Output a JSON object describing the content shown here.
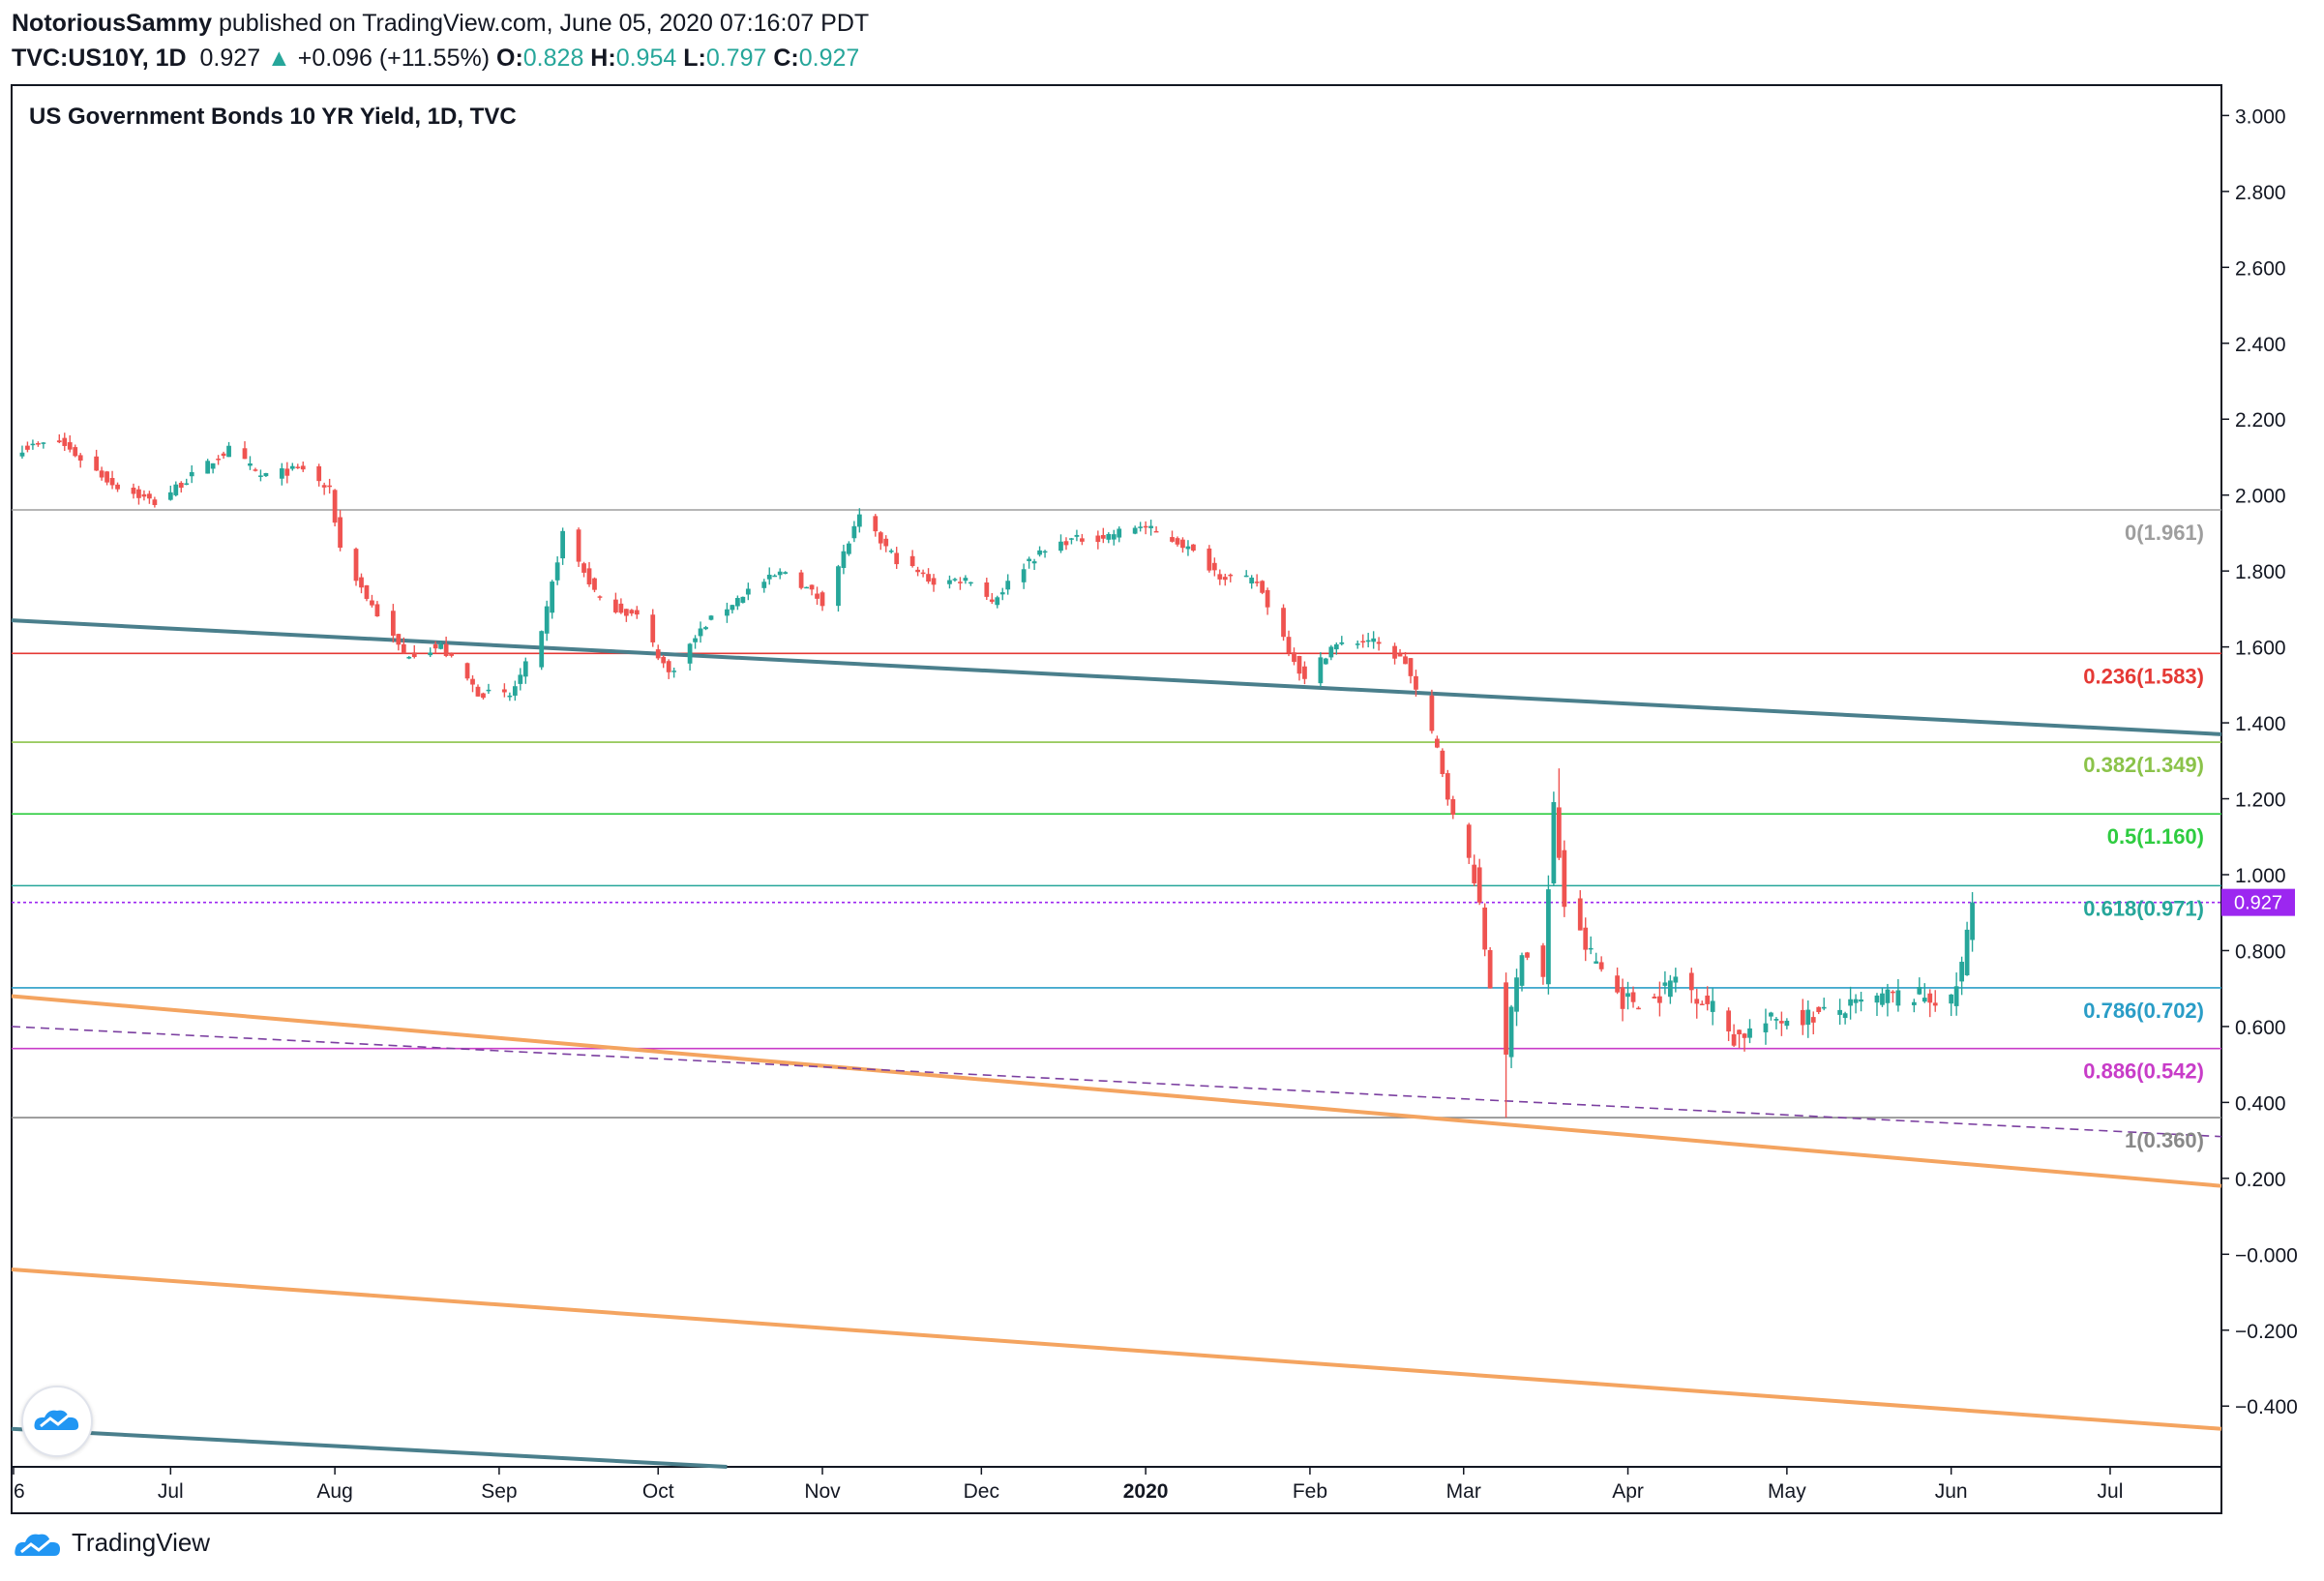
{
  "header": {
    "author": "NotoriousSammy",
    "published": "published on TradingView.com, June 05, 2020 07:16:07 PDT",
    "symbol": "TVC:US10Y, 1D",
    "last": "0.927",
    "change": "+0.096 (+11.55%)",
    "open_label": "O:",
    "open": "0.828",
    "high_label": "H:",
    "high": "0.954",
    "low_label": "L:",
    "low": "0.797",
    "close_label": "C:",
    "close": "0.927"
  },
  "footer": {
    "brand": "TradingView"
  },
  "colors": {
    "up": "#26a69a",
    "down": "#ef5350",
    "trend_teal": "#4a7f8c",
    "trend_orange": "#f4a460",
    "fib0": "#9e9e9e",
    "fib236": "#e53935",
    "fib382": "#8bc34a",
    "fib5": "#2ecc40",
    "fib618": "#26a69a",
    "fib786": "#2a9dc7",
    "fib886": "#c83cc8",
    "fib1": "#888888",
    "price_marker": "#9c27f0"
  },
  "chart_data": {
    "type": "candlestick",
    "title": "US Government Bonds 10 YR Yield, 1D, TVC",
    "ylim": [
      -0.56,
      3.08
    ],
    "y_ticks": [
      "3.000",
      "2.800",
      "2.600",
      "2.400",
      "2.200",
      "2.000",
      "1.800",
      "1.600",
      "1.400",
      "1.200",
      "1.000",
      "0.800",
      "0.600",
      "0.400",
      "0.200",
      "−0.000",
      "−0.200",
      "−0.400"
    ],
    "y_tick_values": [
      3.0,
      2.8,
      2.6,
      2.4,
      2.2,
      2.0,
      1.8,
      1.6,
      1.4,
      1.2,
      1.0,
      0.8,
      0.6,
      0.4,
      0.2,
      0.0,
      -0.2,
      -0.4
    ],
    "x_ticks": [
      {
        "label": "6",
        "date": "2019-06-01"
      },
      {
        "label": "Jul",
        "date": "2019-07-01"
      },
      {
        "label": "Aug",
        "date": "2019-08-01"
      },
      {
        "label": "Sep",
        "date": "2019-09-01"
      },
      {
        "label": "Oct",
        "date": "2019-10-01"
      },
      {
        "label": "Nov",
        "date": "2019-11-01"
      },
      {
        "label": "Dec",
        "date": "2019-12-01"
      },
      {
        "label": "2020",
        "date": "2020-01-01",
        "bold": true
      },
      {
        "label": "Feb",
        "date": "2020-02-01"
      },
      {
        "label": "Mar",
        "date": "2020-03-01"
      },
      {
        "label": "Apr",
        "date": "2020-04-01"
      },
      {
        "label": "May",
        "date": "2020-05-01"
      },
      {
        "label": "Jun",
        "date": "2020-06-01"
      },
      {
        "label": "Jul",
        "date": "2020-07-01"
      }
    ],
    "fib_levels": [
      {
        "label": "0(1.961)",
        "value": 1.961,
        "color": "#9e9e9e"
      },
      {
        "label": "0.236(1.583)",
        "value": 1.583,
        "color": "#e53935"
      },
      {
        "label": "0.382(1.349)",
        "value": 1.349,
        "color": "#8bc34a"
      },
      {
        "label": "0.5(1.160)",
        "value": 1.16,
        "color": "#2ecc40"
      },
      {
        "label": "0.618(0.971)",
        "value": 0.971,
        "color": "#26a69a"
      },
      {
        "label": "0.786(0.702)",
        "value": 0.702,
        "color": "#2a9dc7"
      },
      {
        "label": "0.886(0.542)",
        "value": 0.542,
        "color": "#c83cc8"
      },
      {
        "label": "1(0.360)",
        "value": 0.36,
        "color": "#888888"
      }
    ],
    "last_price": {
      "label": "0.927",
      "value": 0.927
    },
    "trendlines": [
      {
        "name": "",
        "color": "#4a7f8c",
        "from": [
          "2019-06-01",
          1.67
        ],
        "to": [
          "2020-07-22",
          1.37
        ]
      },
      {
        "name": "",
        "color": "#4a7f8c",
        "from": [
          "2019-06-01",
          -0.46
        ],
        "to": [
          "2019-10-14",
          -0.56
        ]
      },
      {
        "name": "",
        "color": "#f4a460",
        "from": [
          "2019-06-01",
          0.68
        ],
        "to": [
          "2020-07-22",
          0.18
        ]
      },
      {
        "name": "",
        "color": "#f4a460",
        "from": [
          "2019-06-01",
          -0.04
        ],
        "to": [
          "2020-07-22",
          -0.46
        ]
      }
    ],
    "dashed_line": {
      "color": "#7b3fa0",
      "from": [
        "2019-06-01",
        0.6
      ],
      "to": [
        "2020-07-22",
        0.31
      ]
    },
    "anchors": [
      [
        "2019-06-01",
        2.12
      ],
      [
        "2019-06-10",
        2.14
      ],
      [
        "2019-06-20",
        2.03
      ],
      [
        "2019-06-28",
        1.98
      ],
      [
        "2019-07-05",
        2.05
      ],
      [
        "2019-07-12",
        2.12
      ],
      [
        "2019-07-18",
        2.05
      ],
      [
        "2019-07-26",
        2.07
      ],
      [
        "2019-07-31",
        2.01
      ],
      [
        "2019-08-02",
        1.86
      ],
      [
        "2019-08-07",
        1.73
      ],
      [
        "2019-08-14",
        1.58
      ],
      [
        "2019-08-21",
        1.6
      ],
      [
        "2019-08-28",
        1.48
      ],
      [
        "2019-09-03",
        1.47
      ],
      [
        "2019-09-09",
        1.63
      ],
      [
        "2019-09-13",
        1.9
      ],
      [
        "2019-09-20",
        1.72
      ],
      [
        "2019-09-27",
        1.68
      ],
      [
        "2019-10-03",
        1.53
      ],
      [
        "2019-10-10",
        1.66
      ],
      [
        "2019-10-18",
        1.75
      ],
      [
        "2019-10-25",
        1.8
      ],
      [
        "2019-11-01",
        1.72
      ],
      [
        "2019-11-08",
        1.94
      ],
      [
        "2019-11-15",
        1.83
      ],
      [
        "2019-11-22",
        1.77
      ],
      [
        "2019-11-29",
        1.78
      ],
      [
        "2019-12-03",
        1.72
      ],
      [
        "2019-12-10",
        1.83
      ],
      [
        "2019-12-17",
        1.88
      ],
      [
        "2019-12-24",
        1.89
      ],
      [
        "2019-12-31",
        1.92
      ],
      [
        "2020-01-08",
        1.87
      ],
      [
        "2020-01-15",
        1.79
      ],
      [
        "2020-01-22",
        1.77
      ],
      [
        "2020-01-31",
        1.51
      ],
      [
        "2020-02-05",
        1.6
      ],
      [
        "2020-02-12",
        1.62
      ],
      [
        "2020-02-19",
        1.56
      ],
      [
        "2020-02-25",
        1.33
      ],
      [
        "2020-02-28",
        1.15
      ],
      [
        "2020-03-03",
        1.0
      ],
      [
        "2020-03-06",
        0.71
      ],
      [
        "2020-03-09",
        0.54
      ],
      [
        "2020-03-12",
        0.81
      ],
      [
        "2020-03-16",
        0.73
      ],
      [
        "2020-03-18",
        1.18
      ],
      [
        "2020-03-20",
        0.92
      ],
      [
        "2020-03-24",
        0.81
      ],
      [
        "2020-03-31",
        0.67
      ],
      [
        "2020-04-06",
        0.67
      ],
      [
        "2020-04-10",
        0.73
      ],
      [
        "2020-04-17",
        0.65
      ],
      [
        "2020-04-21",
        0.57
      ],
      [
        "2020-04-29",
        0.62
      ],
      [
        "2020-05-07",
        0.63
      ],
      [
        "2020-05-13",
        0.65
      ],
      [
        "2020-05-20",
        0.68
      ],
      [
        "2020-05-27",
        0.68
      ],
      [
        "2020-06-01",
        0.66
      ],
      [
        "2020-06-03",
        0.76
      ],
      [
        "2020-06-05",
        0.927
      ]
    ]
  }
}
